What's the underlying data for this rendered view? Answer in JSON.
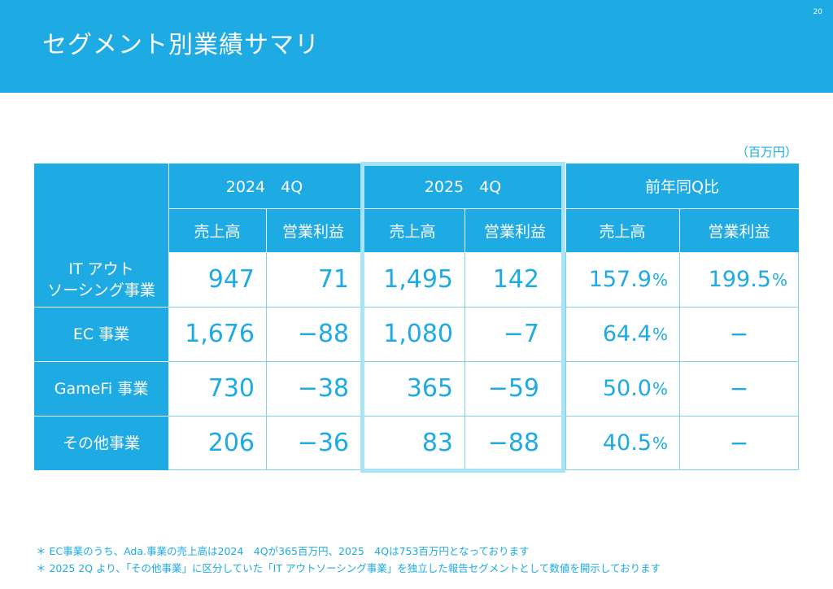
{
  "page": {
    "title": "セグメント別業績サマリ",
    "page_number": "20",
    "unit_label": "（百万円）"
  },
  "table": {
    "periods": [
      "2024　4Q",
      "2025　4Q",
      "前年同Q比"
    ],
    "subheaders": [
      "売上高",
      "営業利益",
      "売上高",
      "営業利益",
      "売上高",
      "営業利益"
    ],
    "rows": [
      {
        "label_lines": [
          "IT アウト",
          "ソーシング事業"
        ],
        "sales_2024": "947",
        "op_2024": "71",
        "sales_2025": "1,495",
        "op_2025": "142",
        "sales_yoy": "157.9",
        "op_yoy": "199.5"
      },
      {
        "label_lines": [
          "EC 事業"
        ],
        "sales_2024": "1,676",
        "op_2024": "−88",
        "sales_2025": "1,080",
        "op_2025": "−7",
        "sales_yoy": "64.4",
        "op_yoy": "−"
      },
      {
        "label_lines": [
          "GameFi 事業"
        ],
        "sales_2024": "730",
        "op_2024": "−38",
        "sales_2025": "365",
        "op_2025": "−59",
        "sales_yoy": "50.0",
        "op_yoy": "−"
      },
      {
        "label_lines": [
          "その他事業"
        ],
        "sales_2024": "206",
        "op_2024": "−36",
        "sales_2025": "83",
        "op_2025": "−88",
        "sales_yoy": "40.5",
        "op_yoy": "−"
      }
    ],
    "percent_sign": "%"
  },
  "footnotes": [
    "＊ EC事業のうち、Ada.事業の売上高は2024　4Qが365百万円、2025　4Qは753百万円となっております",
    "＊ 2025 2Q より、「その他事業」に区分していた「IT アウトソーシング事業」を独立した報告セグメントとして数値を開示しております"
  ],
  "colors": {
    "brand": "#1eaae3",
    "highlight_border": "#a9e3f6",
    "grid": "#7fd0ee"
  }
}
